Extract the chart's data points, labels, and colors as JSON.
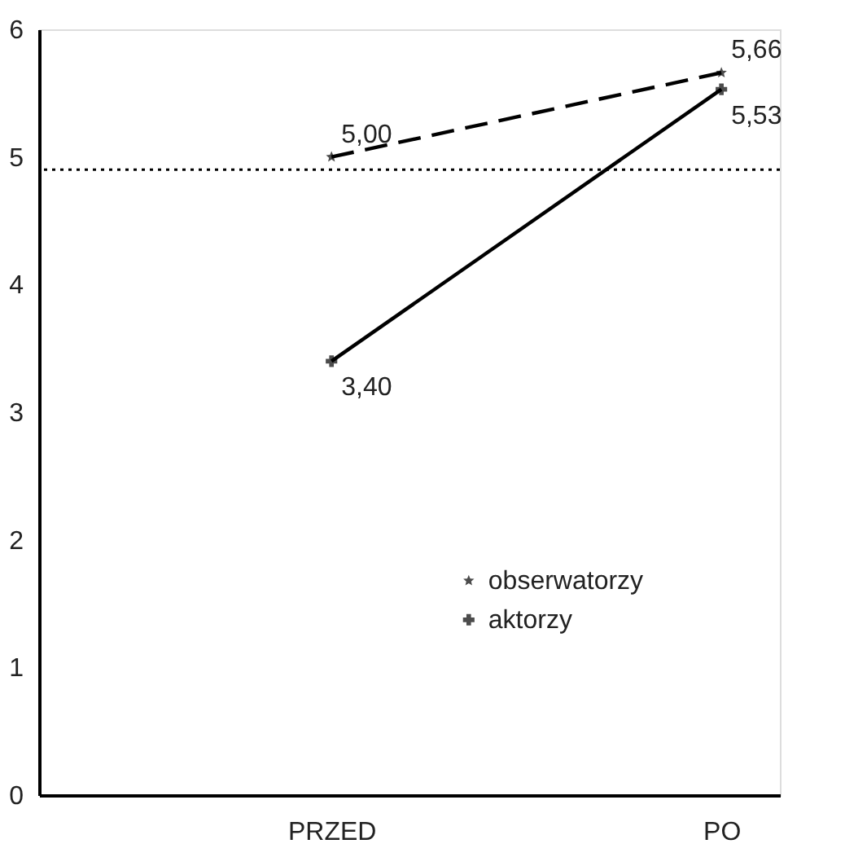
{
  "chart_data": {
    "type": "line",
    "categories": [
      "PRZED",
      "PO"
    ],
    "series": [
      {
        "name": "obserwatorzy",
        "color": "#000000",
        "values": [
          5.0,
          5.66
        ],
        "value_labels": [
          "5,00",
          "5,66"
        ],
        "marker": "star",
        "line_style": "dashed"
      },
      {
        "name": "aktorzy",
        "color": "#000000",
        "values": [
          3.4,
          5.53
        ],
        "value_labels": [
          "3,40",
          "5,53"
        ],
        "marker": "cross",
        "line_style": "solid"
      }
    ],
    "ylim": [
      0,
      6
    ],
    "yticks": [
      0,
      1,
      2,
      3,
      4,
      5,
      6
    ],
    "ref_lines": [
      {
        "axis": "y",
        "value": 4.9,
        "label": null,
        "line_style": "dotted",
        "color": "#000000"
      }
    ],
    "grid": false,
    "legend": "bottom right"
  }
}
